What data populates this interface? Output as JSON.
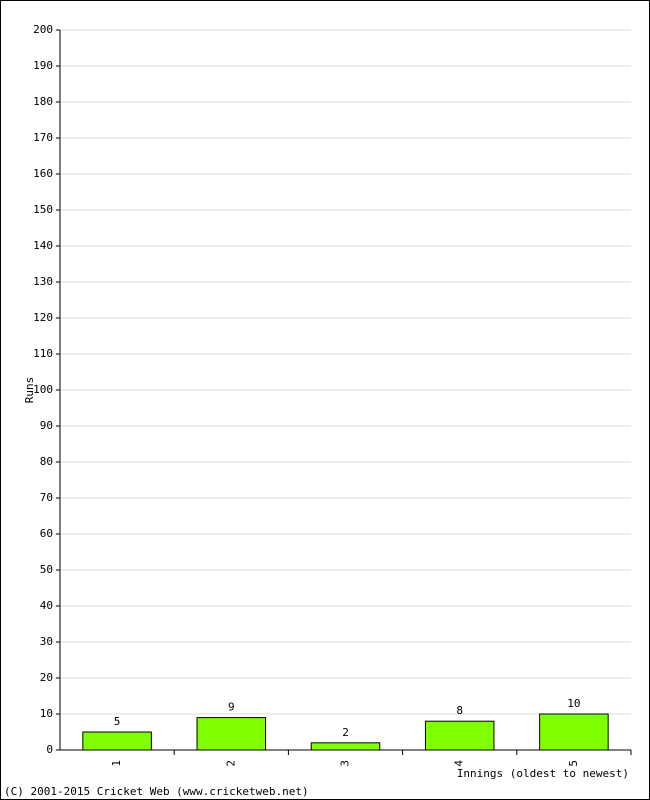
{
  "chart_data": {
    "type": "bar",
    "categories": [
      "1",
      "2",
      "3",
      "4",
      "5"
    ],
    "values": [
      5,
      9,
      2,
      8,
      10
    ],
    "color": "#80ff00",
    "label_color": "#000099",
    "ylim": [
      0,
      200
    ],
    "yticks": [
      0,
      10,
      20,
      30,
      40,
      50,
      60,
      70,
      80,
      90,
      100,
      110,
      120,
      130,
      140,
      150,
      160,
      170,
      180,
      190,
      200
    ],
    "grid": true,
    "y_label": "Runs",
    "x_label": "Innings (oldest to newest)",
    "footer": "(C) 2001-2015 Cricket Web (www.cricketweb.net)"
  }
}
